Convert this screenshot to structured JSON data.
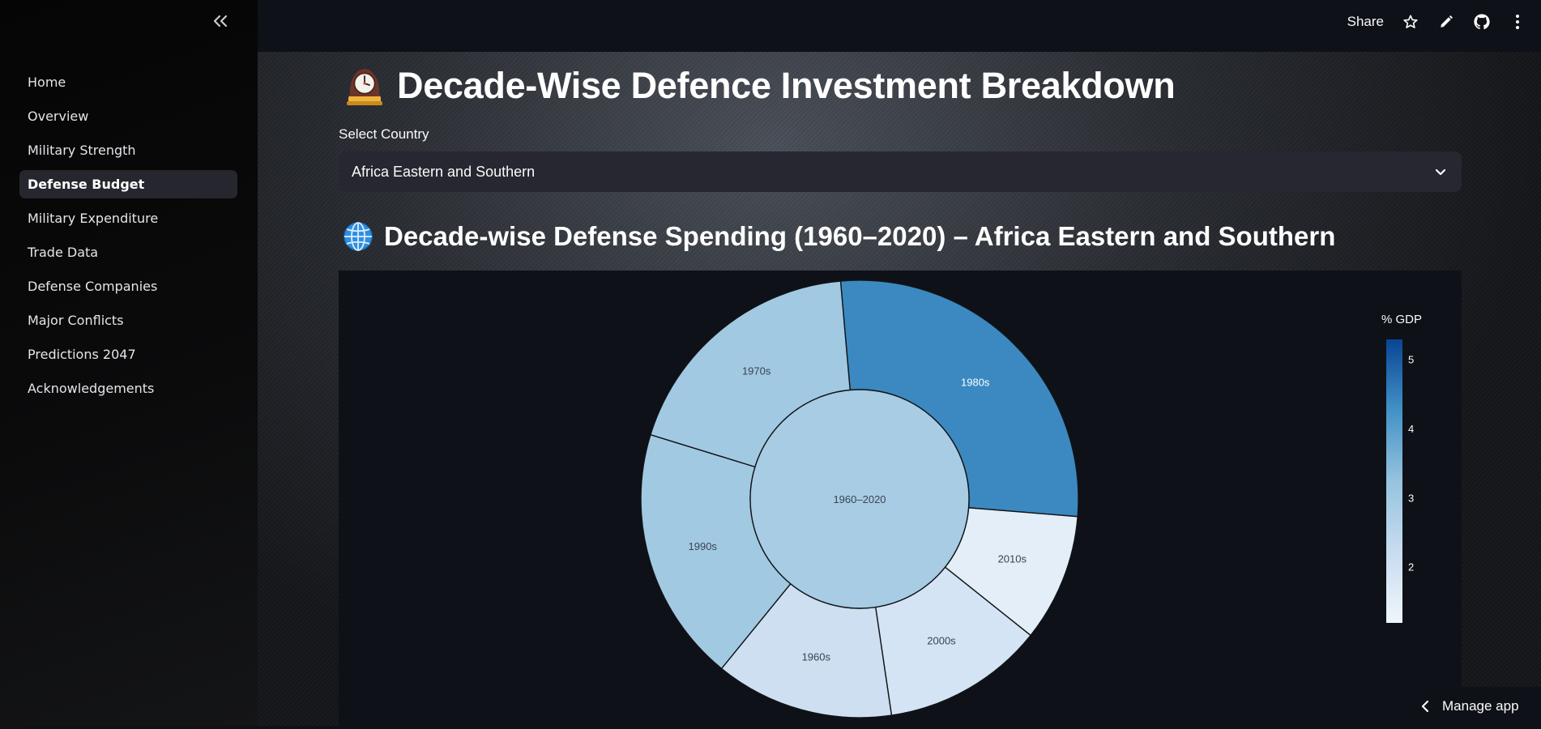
{
  "sidebar": {
    "items": [
      {
        "label": "Home",
        "active": false
      },
      {
        "label": "Overview",
        "active": false
      },
      {
        "label": "Military Strength",
        "active": false
      },
      {
        "label": "Defense Budget",
        "active": true
      },
      {
        "label": "Military Expenditure",
        "active": false
      },
      {
        "label": "Trade Data",
        "active": false
      },
      {
        "label": "Defense Companies",
        "active": false
      },
      {
        "label": "Major Conflicts",
        "active": false
      },
      {
        "label": "Predictions 2047",
        "active": false
      },
      {
        "label": "Acknowledgements",
        "active": false
      }
    ],
    "collapse_icon": "double-chevron-left-icon"
  },
  "header": {
    "share_label": "Share",
    "icons": [
      "star-icon",
      "pencil-icon",
      "github-icon",
      "more-vertical-icon"
    ]
  },
  "page": {
    "title_icon": "mantelpiece-clock-icon",
    "title": "Decade-Wise Defence Investment Breakdown",
    "select_label": "Select Country",
    "select_value": "Africa Eastern and Southern",
    "subtitle_icon": "globe-icon",
    "subtitle": "Decade-wise Defense Spending (1960–2020) – Africa Eastern and Southern"
  },
  "footer": {
    "manage_label": "Manage app"
  },
  "chart_data": {
    "type": "sunburst",
    "root": {
      "label": "1960–2020",
      "value": 2.9
    },
    "colorbar_title": "% GDP",
    "colorbar_ticks": [
      2,
      3,
      4,
      5
    ],
    "colorbar_range": [
      1.2,
      5.3
    ],
    "colorscale": "Blues",
    "slices": [
      {
        "label": "1980s",
        "value": 4.4
      },
      {
        "label": "2010s",
        "value": 1.5
      },
      {
        "label": "2000s",
        "value": 1.9
      },
      {
        "label": "1960s",
        "value": 2.1
      },
      {
        "label": "1990s",
        "value": 3.0
      },
      {
        "label": "1970s",
        "value": 3.0
      }
    ]
  }
}
